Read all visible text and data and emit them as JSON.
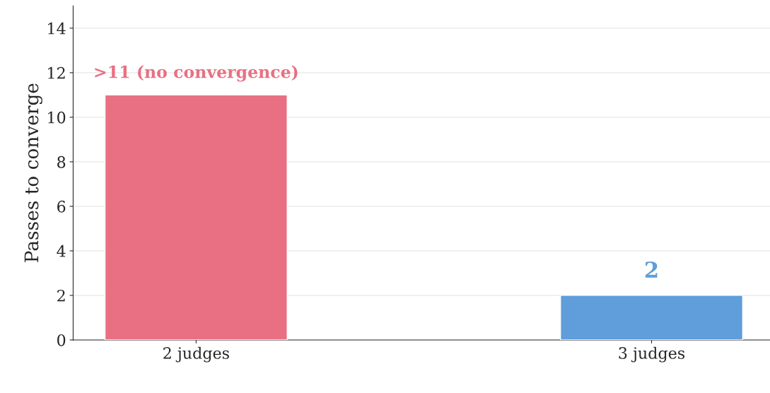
{
  "chart_data": {
    "type": "bar",
    "ylabel": "Passes to converge",
    "categories": [
      "2 judges",
      "3 judges"
    ],
    "values": [
      11,
      2
    ],
    "colors": [
      "#e87082",
      "#5f9ddb"
    ],
    "value_labels": [
      ">11 (no convergence)",
      "2"
    ],
    "ylim": [
      0,
      15
    ],
    "yticks": [
      0,
      2,
      4,
      6,
      8,
      10,
      12,
      14
    ],
    "grid": "y",
    "legend": false
  }
}
